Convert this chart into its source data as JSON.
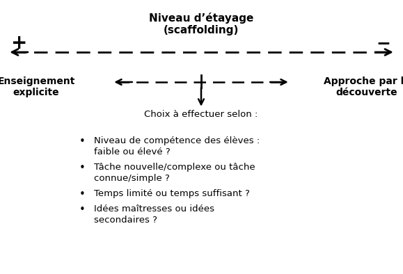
{
  "title_line1": "Niveau d’étayage",
  "title_line2": "(scaffolding)",
  "plus_sign": "+",
  "minus_sign": "−",
  "left_label_line1": "Enseignement",
  "left_label_line2": "explicite",
  "right_label_line1": "Approche par la",
  "right_label_line2": "découverte",
  "choice_text": "Choix à effectuer selon :",
  "bullets": [
    [
      "Niveau de compétence des élèves :",
      "faible ou élevé ?"
    ],
    [
      "Tâche nouvelle/complexe ou tâche",
      "connue/simple ?"
    ],
    [
      "Temps limité ou temps suffisant ?"
    ],
    [
      "Idées maîtresses ou idées",
      "secondaires ?"
    ]
  ],
  "bg_color": "#ffffff",
  "text_color": "#000000"
}
